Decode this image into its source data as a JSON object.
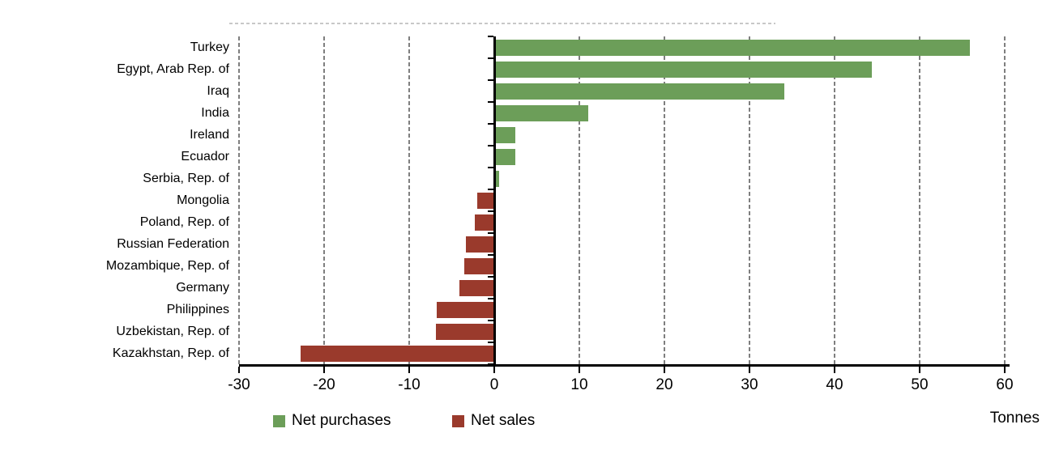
{
  "chart_data": {
    "type": "bar",
    "orientation": "horizontal",
    "title": "",
    "categories": [
      "Turkey",
      "Egypt, Arab Rep. of",
      "Iraq",
      "India",
      "Ireland",
      "Ecuador",
      "Serbia, Rep. of",
      "Mongolia",
      "Poland, Rep. of",
      "Russian Federation",
      "Mozambique, Rep. of",
      "Germany",
      "Philippines",
      "Uzbekistan, Rep. of",
      "Kazakhstan, Rep. of"
    ],
    "values": [
      55.9,
      44.4,
      34.1,
      11.0,
      2.5,
      2.5,
      0.6,
      -2.0,
      -2.3,
      -3.3,
      -3.5,
      -4.1,
      -6.8,
      -6.9,
      -22.8
    ],
    "units": "Tonnes",
    "xlabel": "Tonnes",
    "xlim": [
      -30,
      60
    ],
    "xticks": [
      -30,
      -20,
      -10,
      0,
      10,
      20,
      30,
      40,
      50,
      60
    ],
    "grid": "vertical dashed gridlines at every 10 tonnes except 0; solid axis at 0",
    "legend_position": "bottom",
    "legend": [
      {
        "label": "Net purchases",
        "color": "#6C9E59",
        "applies_to": "positive values"
      },
      {
        "label": "Net sales",
        "color": "#9A3A2C",
        "applies_to": "negative values"
      }
    ],
    "colors": {
      "net_purchases": "#6C9E59",
      "net_sales": "#9A3A2C",
      "gridline": "#7F7F7F",
      "axis": "#000000"
    }
  }
}
